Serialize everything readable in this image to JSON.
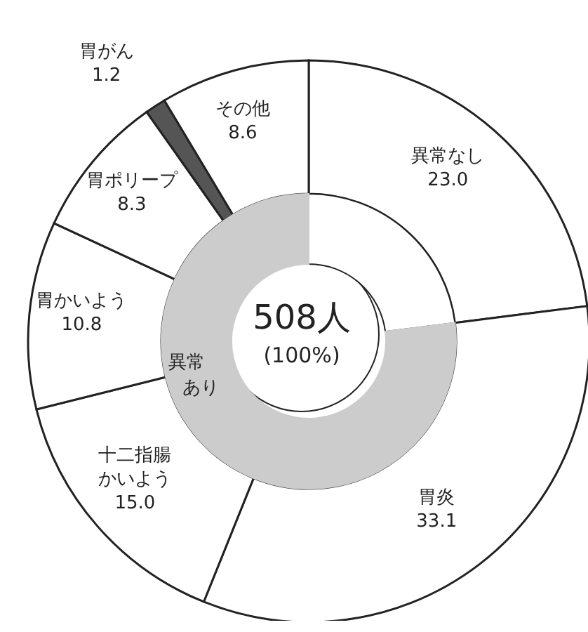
{
  "chart_data": {
    "type": "donut",
    "categories": [
      "異常なし",
      "胃炎",
      "十二指腸かいよう",
      "胃かいよう",
      "胃ポリープ",
      "胃がん",
      "その他"
    ],
    "series": [
      {
        "values": [
          23.0,
          33.1,
          15.0,
          10.8,
          8.3,
          1.2,
          8.6
        ],
        "colors": [
          "#ffffff",
          "#ffffff",
          "#ffffff",
          "#ffffff",
          "#ffffff",
          "#555555",
          "#ffffff"
        ],
        "value_labels": [
          "23.0",
          "33.1",
          "15.0",
          "10.8",
          "8.3",
          "1.2",
          "8.6"
        ]
      },
      {
        "name": "異常あり",
        "values": [
          23.0,
          33.1,
          15.0,
          10.8,
          8.3,
          1.2,
          8.6
        ],
        "colors": [
          "#ffffff",
          "#cccccc",
          "#cccccc",
          "#cccccc",
          "#cccccc",
          "#cccccc",
          "#cccccc"
        ]
      }
    ],
    "annotations": [
      "508人",
      "(100%)"
    ]
  }
}
